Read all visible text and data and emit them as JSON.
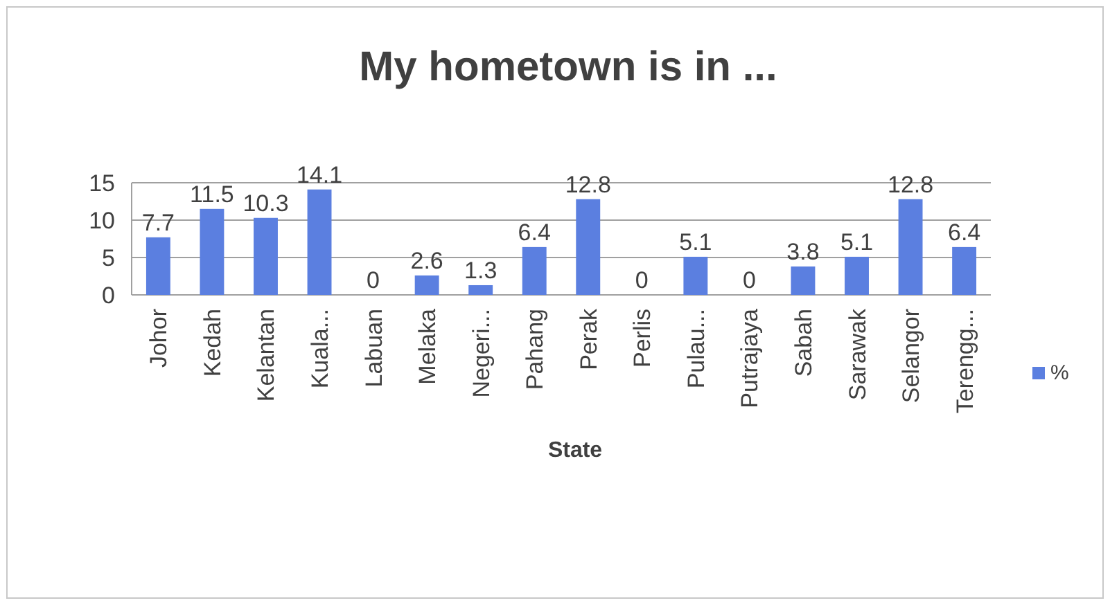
{
  "chart_data": {
    "type": "bar",
    "title": "My hometown is in ...",
    "xlabel": "State",
    "categories": [
      "Johor",
      "Kedah",
      "Kelantan",
      "Kuala...",
      "Labuan",
      "Melaka",
      "Negeri...",
      "Pahang",
      "Perak",
      "Perlis",
      "Pulau...",
      "Putrajaya",
      "Sabah",
      "Sarawak",
      "Selangor",
      "Terengg..."
    ],
    "series": [
      {
        "name": "%",
        "color": "#5b7fe0",
        "values": [
          7.7,
          11.5,
          10.3,
          14.1,
          0,
          2.6,
          1.3,
          6.4,
          12.8,
          0,
          5.1,
          0,
          3.8,
          5.1,
          12.8,
          6.4
        ]
      }
    ],
    "ylim": [
      0,
      15
    ],
    "yticks": [
      0,
      5,
      10,
      15
    ],
    "grid": "y",
    "legend": "right",
    "data_labels": true
  }
}
